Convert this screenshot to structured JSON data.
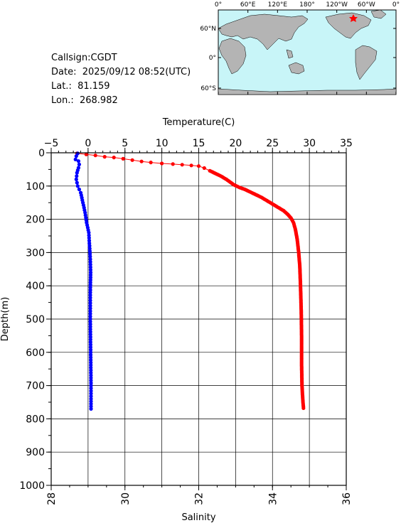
{
  "station": {
    "callsign": "Callsign:CGDT",
    "date": "Date:  2025/09/12 08:52(UTC)",
    "lat": "Lat.:  81.159",
    "lon": "Lon.:  268.982"
  },
  "map": {
    "lon_labels": [
      "0°",
      "60°E",
      "120°E",
      "180°",
      "120°W",
      "60°W",
      "0°"
    ],
    "lat_labels": [
      "60°N",
      "0°",
      "60°S"
    ],
    "ocean_color": "#c8f5f8",
    "land_color": "#b4b4b4",
    "marker_color": "#ff0000"
  },
  "chart_data": {
    "type": "line",
    "top_axis_label": "Temperature(C)",
    "bottom_axis_label": "Salinity",
    "ylabel": "Depth(m)",
    "y_inverted": true,
    "ylim": [
      0,
      1000
    ],
    "y_ticks": [
      0,
      100,
      200,
      300,
      400,
      500,
      600,
      700,
      800,
      900,
      1000
    ],
    "temperature_ticks": [
      -5,
      0,
      5,
      10,
      15,
      20,
      25,
      30,
      35
    ],
    "temperature_range": [
      -5,
      35
    ],
    "salinity_ticks": [
      28,
      30,
      32,
      34,
      36
    ],
    "salinity_range": [
      28,
      36
    ],
    "grid": true,
    "series": [
      {
        "axis": "salinity",
        "color": "#ff0000",
        "points": [
          [
            28.7,
            2
          ],
          [
            28.95,
            5
          ],
          [
            29.2,
            8
          ],
          [
            29.45,
            12
          ],
          [
            29.7,
            14
          ],
          [
            29.95,
            18
          ],
          [
            30.2,
            22
          ],
          [
            30.45,
            26
          ],
          [
            30.7,
            29
          ],
          [
            31.0,
            32
          ],
          [
            31.3,
            34
          ],
          [
            31.55,
            36
          ],
          [
            31.8,
            38
          ],
          [
            32.0,
            40
          ],
          [
            32.15,
            46
          ],
          [
            32.3,
            54
          ],
          [
            32.45,
            62
          ],
          [
            32.6,
            70
          ],
          [
            32.75,
            80
          ],
          [
            32.85,
            88
          ],
          [
            32.95,
            96
          ],
          [
            33.1,
            104
          ],
          [
            33.25,
            110
          ],
          [
            33.4,
            118
          ],
          [
            33.55,
            126
          ],
          [
            33.7,
            134
          ],
          [
            33.85,
            144
          ],
          [
            34.0,
            154
          ],
          [
            34.15,
            164
          ],
          [
            34.3,
            174
          ],
          [
            34.42,
            186
          ],
          [
            34.5,
            196
          ],
          [
            34.57,
            210
          ],
          [
            34.62,
            230
          ],
          [
            34.67,
            260
          ],
          [
            34.71,
            300
          ],
          [
            34.74,
            340
          ],
          [
            34.76,
            400
          ],
          [
            34.78,
            480
          ],
          [
            34.79,
            560
          ],
          [
            34.79,
            640
          ],
          [
            34.8,
            700
          ],
          [
            34.82,
            740
          ],
          [
            34.84,
            768
          ]
        ]
      },
      {
        "axis": "temperature",
        "color": "#0000ff",
        "points": [
          [
            -1.4,
            2
          ],
          [
            -1.6,
            10
          ],
          [
            -1.7,
            20
          ],
          [
            -1.3,
            25
          ],
          [
            -1.2,
            35
          ],
          [
            -1.3,
            45
          ],
          [
            -1.5,
            60
          ],
          [
            -1.6,
            80
          ],
          [
            -1.4,
            100
          ],
          [
            -1.0,
            120
          ],
          [
            -0.7,
            150
          ],
          [
            -0.4,
            180
          ],
          [
            -0.2,
            210
          ],
          [
            0.1,
            240
          ],
          [
            0.2,
            280
          ],
          [
            0.3,
            320
          ],
          [
            0.35,
            360
          ],
          [
            0.3,
            420
          ],
          [
            0.3,
            500
          ],
          [
            0.35,
            600
          ],
          [
            0.4,
            700
          ],
          [
            0.4,
            740
          ],
          [
            0.4,
            770
          ]
        ]
      }
    ]
  }
}
